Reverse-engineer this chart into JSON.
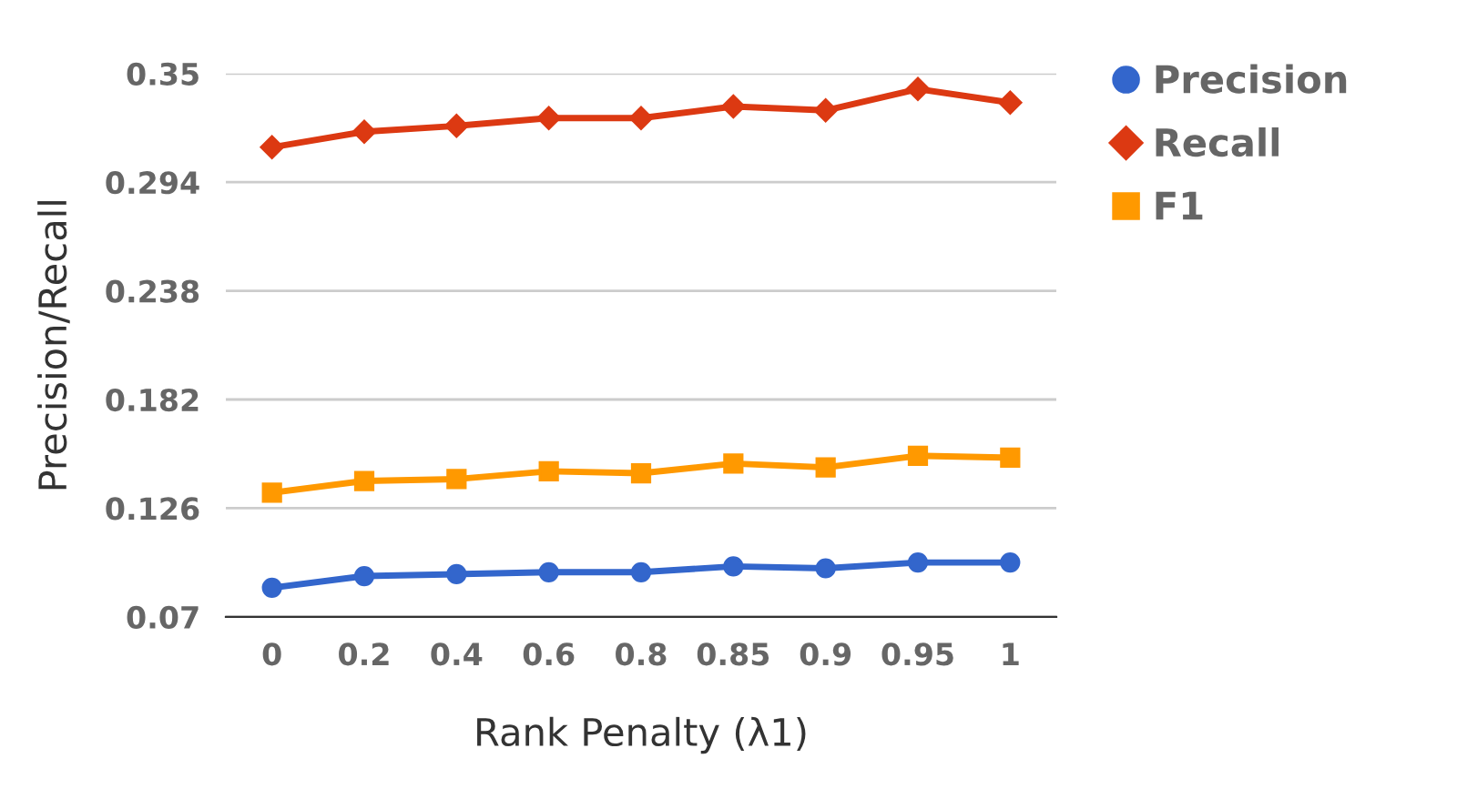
{
  "chart_data": {
    "type": "line",
    "xlabel": "Rank Penalty (λ1)",
    "ylabel": "Precision/Recall",
    "categories": [
      "0",
      "0.2",
      "0.4",
      "0.6",
      "0.8",
      "0.85",
      "0.9",
      "0.95",
      "1"
    ],
    "series": [
      {
        "name": "Precision",
        "color": "#3366cc",
        "marker": "circle",
        "values": [
          0.085,
          0.091,
          0.092,
          0.093,
          0.093,
          0.096,
          0.095,
          0.098,
          0.098
        ]
      },
      {
        "name": "Recall",
        "color": "#dc3912",
        "marker": "diamond",
        "values": [
          0.312,
          0.32,
          0.323,
          0.327,
          0.327,
          0.333,
          0.331,
          0.342,
          0.335
        ]
      },
      {
        "name": "F1",
        "color": "#ff9900",
        "marker": "square",
        "values": [
          0.134,
          0.14,
          0.141,
          0.145,
          0.144,
          0.149,
          0.147,
          0.153,
          0.152
        ]
      }
    ],
    "ylim": [
      0.07,
      0.35
    ],
    "yticks": [
      0.07,
      0.126,
      0.182,
      0.238,
      0.294,
      0.35
    ],
    "grid": "y",
    "legend": "top right",
    "line_style": "solid"
  }
}
